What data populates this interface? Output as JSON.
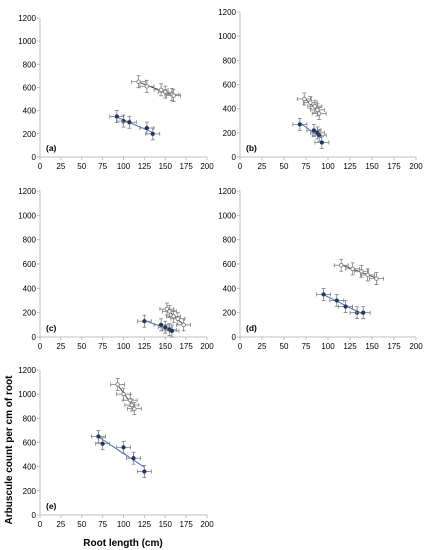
{
  "colors": {
    "axis": "#bfbfbf",
    "open_marker_fill": "#ffffff",
    "open_marker_stroke": "#7f7f7f",
    "filled_marker_fill": "#1f3864",
    "trend_line": "#4472c4",
    "error_bar": "#7f7f7f",
    "text": "#000000"
  },
  "y_axis_title": "Arbuscule count per cm of root",
  "x_axis_title": "Root length (cm)",
  "chart_data": [
    {
      "type": "scatter",
      "panel_label": "(a)",
      "xlim": [
        0,
        200
      ],
      "ylim": [
        0,
        1200
      ],
      "x_ticks": [
        0,
        25,
        50,
        75,
        100,
        125,
        150,
        175,
        200
      ],
      "y_ticks": [
        0,
        200,
        400,
        600,
        800,
        1000,
        1200
      ],
      "series": [
        {
          "marker": "open",
          "trend": true,
          "points": [
            [
              118,
              650
            ],
            [
              128,
              610
            ],
            [
              145,
              580
            ],
            [
              150,
              560
            ],
            [
              158,
              540
            ],
            [
              160,
              530
            ]
          ]
        },
        {
          "marker": "filled",
          "trend": true,
          "points": [
            [
              92,
              350
            ],
            [
              100,
              310
            ],
            [
              107,
              300
            ],
            [
              128,
              250
            ],
            [
              135,
              200
            ]
          ]
        }
      ]
    },
    {
      "type": "scatter",
      "panel_label": "(b)",
      "xlim": [
        0,
        200
      ],
      "ylim": [
        0,
        1200
      ],
      "x_ticks": [
        0,
        25,
        50,
        75,
        100,
        125,
        150,
        175,
        200
      ],
      "y_ticks": [
        0,
        200,
        400,
        600,
        800,
        1000,
        1200
      ],
      "series": [
        {
          "marker": "open",
          "trend": true,
          "points": [
            [
              73,
              480
            ],
            [
              80,
              450
            ],
            [
              85,
              420
            ],
            [
              88,
              390
            ],
            [
              90,
              360
            ]
          ]
        },
        {
          "marker": "filled",
          "trend": true,
          "points": [
            [
              68,
              270
            ],
            [
              84,
              220
            ],
            [
              88,
              200
            ],
            [
              90,
              180
            ],
            [
              93,
              120
            ]
          ]
        }
      ]
    },
    {
      "type": "scatter",
      "panel_label": "(c)",
      "xlim": [
        0,
        200
      ],
      "ylim": [
        0,
        1200
      ],
      "x_ticks": [
        0,
        25,
        50,
        75,
        100,
        125,
        150,
        175,
        200
      ],
      "y_ticks": [
        0,
        200,
        400,
        600,
        800,
        1000,
        1200
      ],
      "series": [
        {
          "marker": "open",
          "trend": true,
          "points": [
            [
              152,
              230
            ],
            [
              155,
              210
            ],
            [
              160,
              170
            ],
            [
              165,
              150
            ],
            [
              172,
              100
            ]
          ]
        },
        {
          "marker": "filled",
          "trend": true,
          "points": [
            [
              125,
              130
            ],
            [
              145,
              100
            ],
            [
              150,
              80
            ],
            [
              155,
              60
            ],
            [
              158,
              50
            ]
          ]
        }
      ]
    },
    {
      "type": "scatter",
      "panel_label": "(d)",
      "xlim": [
        0,
        200
      ],
      "ylim": [
        0,
        1200
      ],
      "x_ticks": [
        0,
        25,
        50,
        75,
        100,
        125,
        150,
        175,
        200
      ],
      "y_ticks": [
        0,
        200,
        400,
        600,
        800,
        1000,
        1200
      ],
      "series": [
        {
          "marker": "open",
          "trend": true,
          "points": [
            [
              115,
              590
            ],
            [
              128,
              560
            ],
            [
              138,
              540
            ],
            [
              145,
              510
            ],
            [
              155,
              480
            ]
          ]
        },
        {
          "marker": "filled",
          "trend": true,
          "points": [
            [
              95,
              350
            ],
            [
              110,
              300
            ],
            [
              120,
              250
            ],
            [
              133,
              200
            ],
            [
              140,
              200
            ]
          ]
        }
      ]
    },
    {
      "type": "scatter",
      "panel_label": "(e)",
      "xlim": [
        0,
        200
      ],
      "ylim": [
        0,
        1200
      ],
      "x_ticks": [
        0,
        25,
        50,
        75,
        100,
        125,
        150,
        175,
        200
      ],
      "y_ticks": [
        0,
        200,
        400,
        600,
        800,
        1000,
        1200
      ],
      "series": [
        {
          "marker": "open",
          "trend": true,
          "points": [
            [
              93,
              1080
            ],
            [
              100,
              1000
            ],
            [
              108,
              950
            ],
            [
              110,
              910
            ],
            [
              113,
              880
            ]
          ]
        },
        {
          "marker": "filled",
          "trend": true,
          "points": [
            [
              70,
              650
            ],
            [
              75,
              590
            ],
            [
              100,
              560
            ],
            [
              112,
              470
            ],
            [
              125,
              360
            ]
          ]
        }
      ]
    }
  ]
}
